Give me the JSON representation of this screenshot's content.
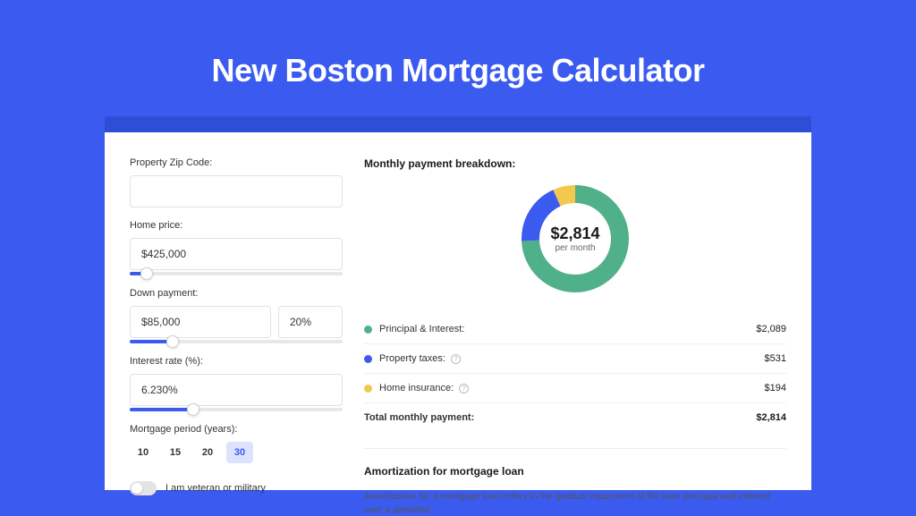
{
  "page": {
    "title": "New Boston Mortgage Calculator",
    "colors": {
      "outer_bg": "#3b5bf0",
      "inner_band": "#2f4ed6",
      "card_bg": "#ffffff",
      "accent": "#3b5bf0",
      "text": "#333333",
      "muted": "#666666",
      "border": "#e2e2e2"
    }
  },
  "form": {
    "zip": {
      "label": "Property Zip Code:",
      "value": ""
    },
    "home_price": {
      "label": "Home price:",
      "value": "$425,000",
      "slider_pct": 8
    },
    "down_payment": {
      "label": "Down payment:",
      "value": "$85,000",
      "pct": "20%",
      "slider_pct": 20
    },
    "interest": {
      "label": "Interest rate (%):",
      "value": "6.230%",
      "slider_pct": 30
    },
    "period": {
      "label": "Mortgage period (years):",
      "options": [
        "10",
        "15",
        "20",
        "30"
      ],
      "selected": "30"
    },
    "veteran": {
      "label": "I am veteran or military",
      "on": false
    }
  },
  "breakdown": {
    "title": "Monthly payment breakdown:",
    "donut": {
      "amount": "$2,814",
      "sub": "per month",
      "segments": [
        {
          "label": "Principal & Interest",
          "value": 2089,
          "color": "#4fb08a",
          "pct": 74.2
        },
        {
          "label": "Property taxes",
          "value": 531,
          "color": "#3b5bf0",
          "pct": 18.9
        },
        {
          "label": "Home insurance",
          "value": 194,
          "color": "#f2c94c",
          "pct": 6.9
        }
      ],
      "stroke_width": 20,
      "radius": 50
    },
    "rows": [
      {
        "color": "#4fb08a",
        "label": "Principal & Interest:",
        "info": false,
        "value": "$2,089"
      },
      {
        "color": "#3b5bf0",
        "label": "Property taxes:",
        "info": true,
        "value": "$531"
      },
      {
        "color": "#f2c94c",
        "label": "Home insurance:",
        "info": true,
        "value": "$194"
      }
    ],
    "total": {
      "label": "Total monthly payment:",
      "value": "$2,814"
    }
  },
  "amortization": {
    "title": "Amortization for mortgage loan",
    "body": "Amortization for a mortgage loan refers to the gradual repayment of the loan principal and interest over a specified"
  }
}
